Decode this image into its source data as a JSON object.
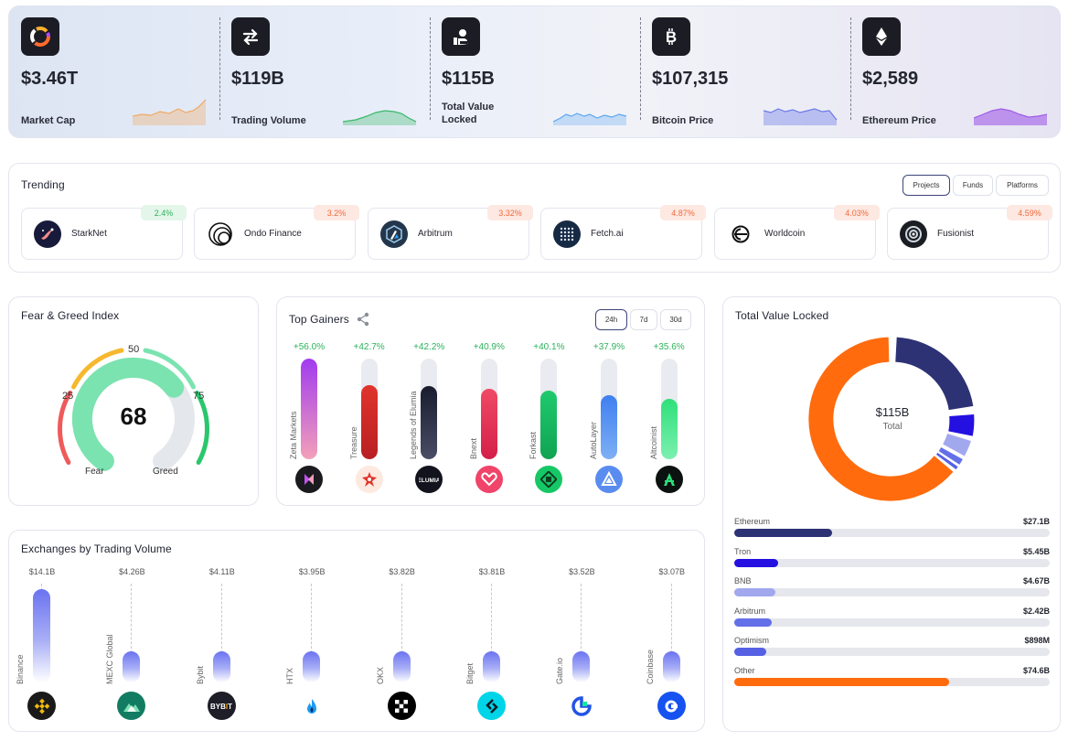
{
  "stats": [
    {
      "value": "$3.46T",
      "label": "Market Cap",
      "icon": "market-cap-icon",
      "spark_color": "#f0a962"
    },
    {
      "value": "$119B",
      "label": "Trading Volume",
      "icon": "swap-arrows-icon",
      "spark_color": "#3bb86b"
    },
    {
      "value": "$115B",
      "label": "Total Value Locked",
      "icon": "locked-value-icon",
      "spark_color": "#5aa6f0"
    },
    {
      "value": "$107,315",
      "label": "Bitcoin Price",
      "icon": "bitcoin-icon",
      "spark_color": "#6b7ae8"
    },
    {
      "value": "$2,589",
      "label": "Ethereum Price",
      "icon": "ethereum-icon",
      "spark_color": "#a05be8"
    }
  ],
  "trending": {
    "title": "Trending",
    "tabs": [
      "Projects",
      "Funds",
      "Platforms"
    ],
    "active_tab": "Projects",
    "items": [
      {
        "name": "StarkNet",
        "change": "2.4%",
        "trend": "up"
      },
      {
        "name": "Ondo Finance",
        "change": "3.2%",
        "trend": "down"
      },
      {
        "name": "Arbitrum",
        "change": "3.32%",
        "trend": "down"
      },
      {
        "name": "Fetch.ai",
        "change": "4.87%",
        "trend": "down"
      },
      {
        "name": "Worldcoin",
        "change": "4.03%",
        "trend": "down"
      },
      {
        "name": "Fusionist",
        "change": "4.59%",
        "trend": "down"
      }
    ]
  },
  "fear_greed": {
    "title": "Fear & Greed Index",
    "value": "68",
    "scale": [
      "25",
      "50",
      "75"
    ],
    "low_label": "Fear",
    "high_label": "Greed",
    "level": 0.68
  },
  "top_gainers": {
    "title": "Top Gainers",
    "periods": [
      "24h",
      "7d",
      "30d"
    ],
    "active_period": "24h",
    "items": [
      {
        "name": "Zeta Markets",
        "change": "+56.0%",
        "level": 1.0,
        "color_top": "#a13bf0",
        "color_bottom": "#f3a0b8"
      },
      {
        "name": "Treasure",
        "change": "+42.7%",
        "level": 0.74,
        "color_top": "#e0342c",
        "color_bottom": "#b81f22"
      },
      {
        "name": "Legends of Elumia",
        "change": "+42.2%",
        "level": 0.73,
        "color_top": "#1a1c2e",
        "color_bottom": "#4a4d66"
      },
      {
        "name": "Bnext",
        "change": "+40.9%",
        "level": 0.7,
        "color_top": "#f04a66",
        "color_bottom": "#d41f48"
      },
      {
        "name": "Forkast",
        "change": "+40.1%",
        "level": 0.68,
        "color_top": "#1fca6d",
        "color_bottom": "#10a352"
      },
      {
        "name": "AutoLayer",
        "change": "+37.9%",
        "level": 0.64,
        "color_top": "#3f7ff0",
        "color_bottom": "#7fb0f5"
      },
      {
        "name": "Altcoinist",
        "change": "+35.6%",
        "level": 0.6,
        "color_top": "#2ee07a",
        "color_bottom": "#7df0b0"
      }
    ]
  },
  "tvl": {
    "title": "Total Value Locked",
    "center_value": "$115B",
    "center_label": "Total",
    "chains": [
      {
        "name": "Ethereum",
        "value": "$27.1B",
        "fraction": 0.31,
        "color": "#2d3275"
      },
      {
        "name": "Tron",
        "value": "$5.45B",
        "fraction": 0.14,
        "color": "#2410e0"
      },
      {
        "name": "BNB",
        "value": "$4.67B",
        "fraction": 0.13,
        "color": "#a2a8ee"
      },
      {
        "name": "Arbitrum",
        "value": "$2.42B",
        "fraction": 0.12,
        "color": "#6470e8"
      },
      {
        "name": "Optimism",
        "value": "$898M",
        "fraction": 0.1,
        "color": "#5560e4"
      },
      {
        "name": "Other",
        "value": "$74.6B",
        "fraction": 0.68,
        "color": "#ff6b0d"
      }
    ]
  },
  "exchanges": {
    "title": "Exchanges by Trading Volume",
    "items": [
      {
        "name": "Binance",
        "value": "$14.1B",
        "level": 1.0
      },
      {
        "name": "MEXC Global",
        "value": "$4.26B",
        "level": 0.3
      },
      {
        "name": "Bybit",
        "value": "$4.11B",
        "level": 0.29
      },
      {
        "name": "HTX",
        "value": "$3.95B",
        "level": 0.28
      },
      {
        "name": "OKX",
        "value": "$3.82B",
        "level": 0.27
      },
      {
        "name": "Bitget",
        "value": "$3.81B",
        "level": 0.27
      },
      {
        "name": "Gate.io",
        "value": "$3.52B",
        "level": 0.25
      },
      {
        "name": "Coinbase",
        "value": "$3.07B",
        "level": 0.22
      }
    ]
  }
}
